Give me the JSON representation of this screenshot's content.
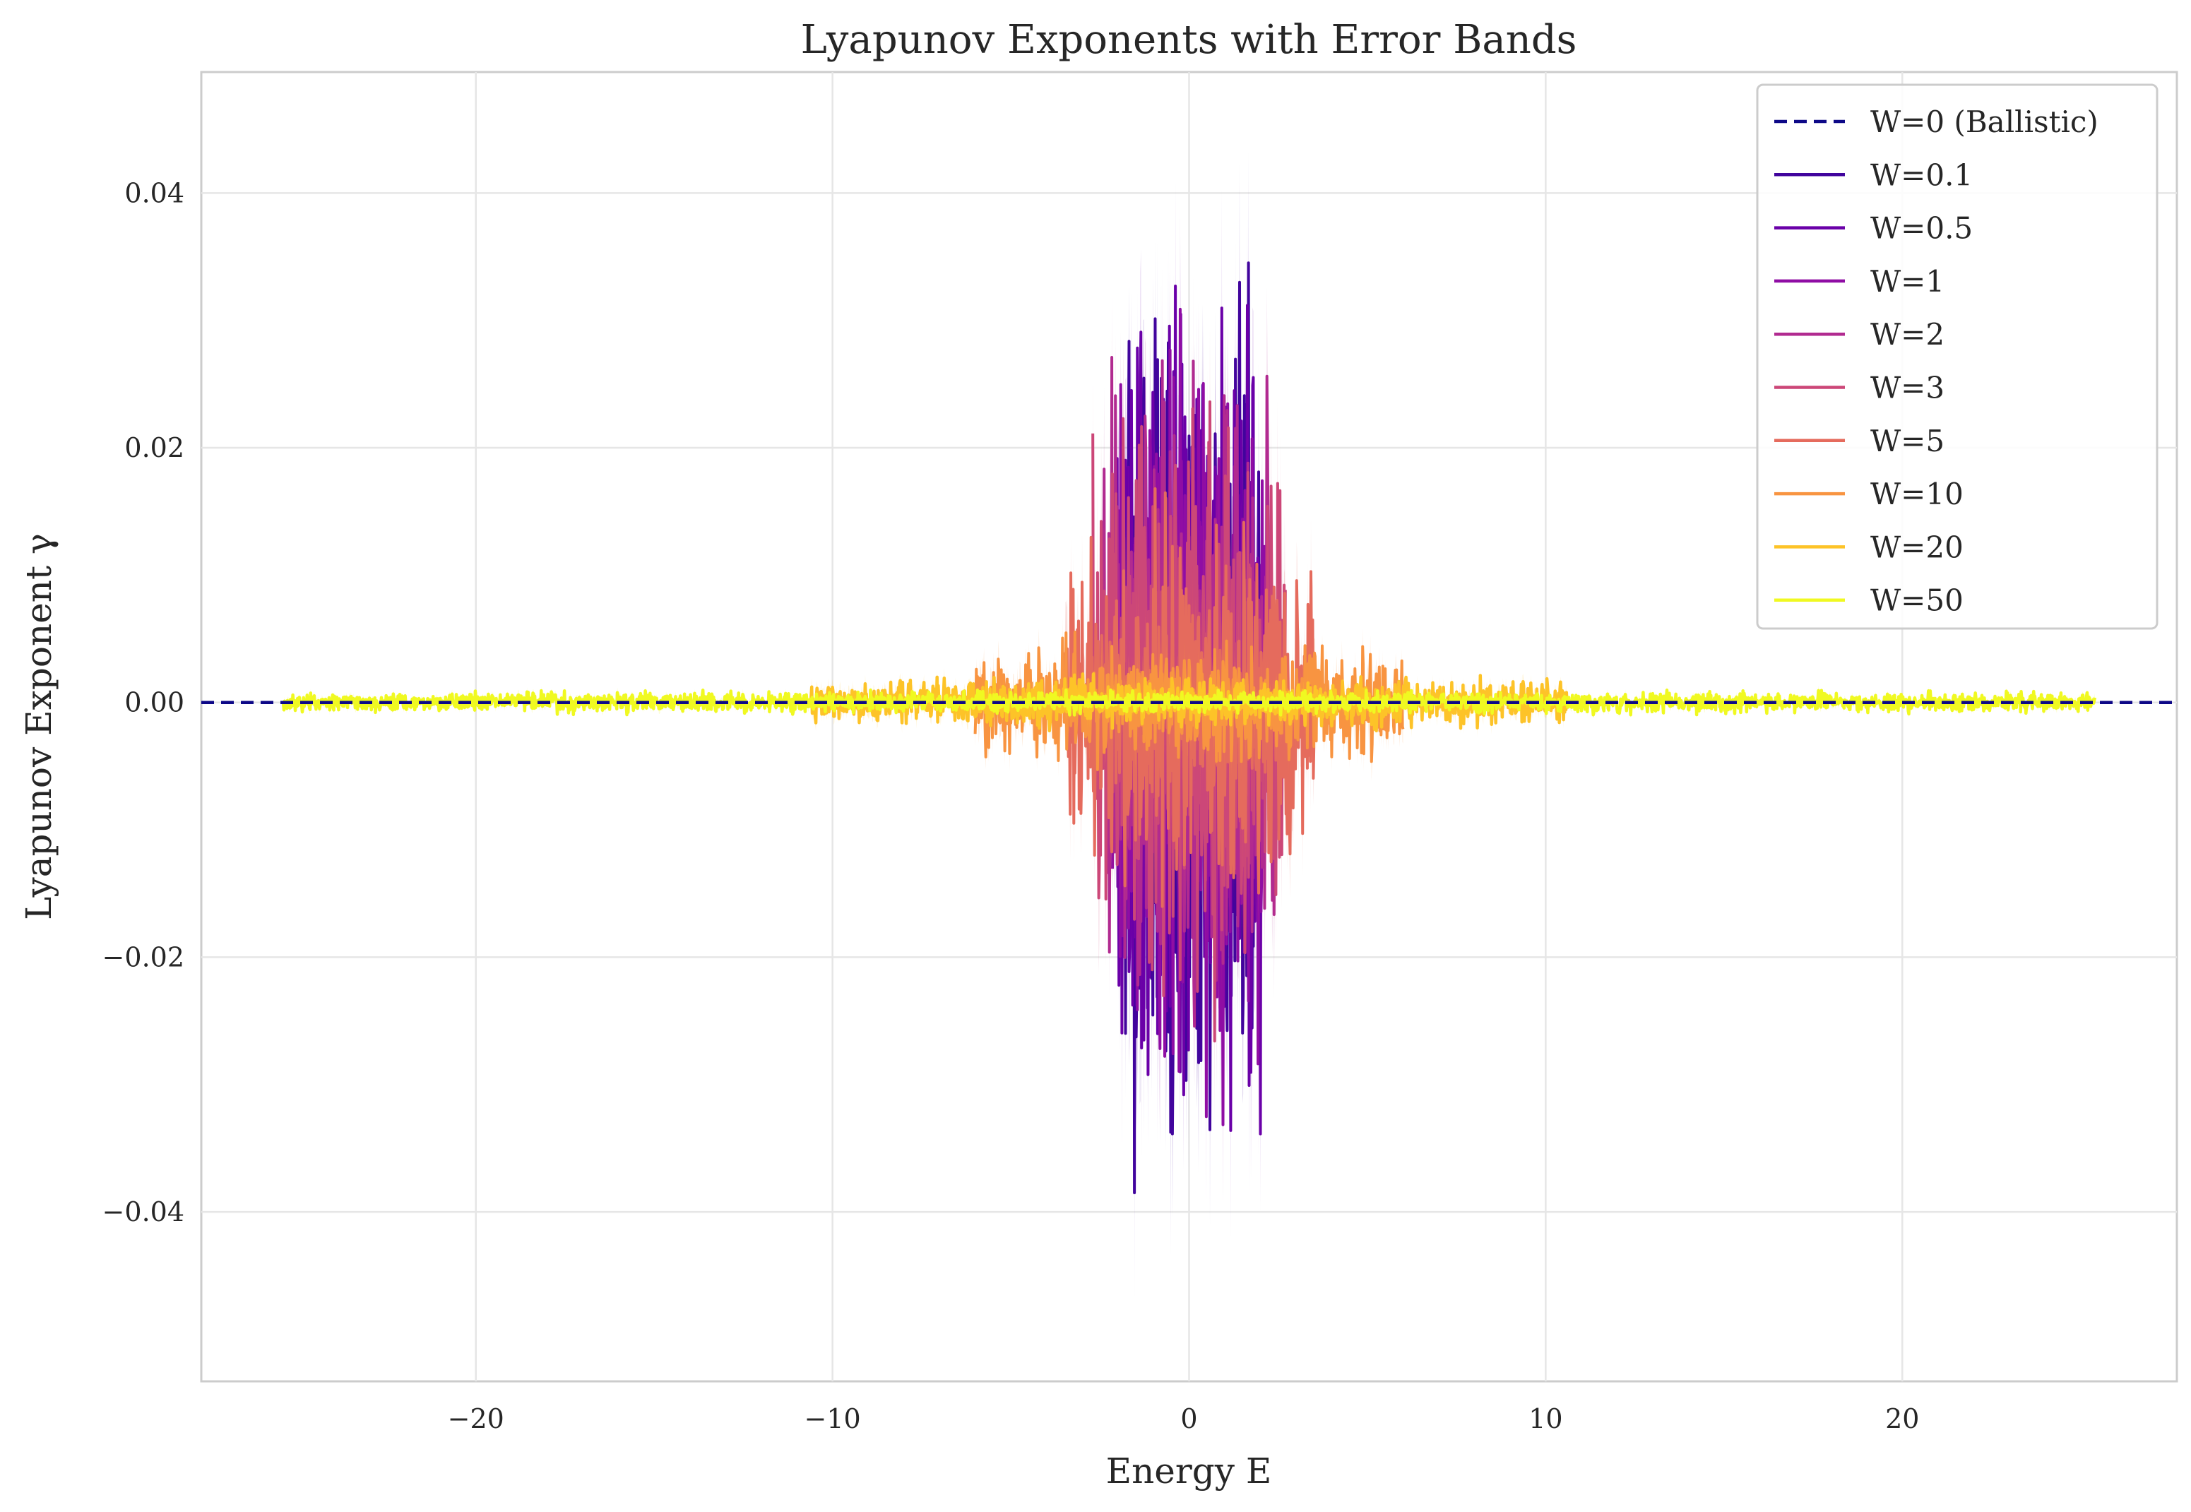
{
  "chart_data": {
    "type": "line",
    "title": "Lyapunov Exponents with Error Bands",
    "xlabel": "Energy E",
    "ylabel": "Lyapunov Exponent γ",
    "xlim": [
      -27.7,
      27.7
    ],
    "ylim": [
      -0.0533,
      0.0495
    ],
    "xticks": [
      -20,
      -10,
      0,
      10,
      20
    ],
    "xtick_labels": [
      "−20",
      "−10",
      "0",
      "10",
      "20"
    ],
    "yticks": [
      -0.04,
      -0.02,
      0.0,
      0.02,
      0.04
    ],
    "ytick_labels": [
      "−0.04",
      "−0.02",
      "0.00",
      "0.02",
      "0.04"
    ],
    "grid": true,
    "legend_position": "top-right",
    "reference_line": {
      "name": "W=0 (Ballistic)",
      "y": 0.0,
      "style": "dashed",
      "color": "#0d0887"
    },
    "series": [
      {
        "name": "W=0.1",
        "W": 0.1,
        "color": "#41049d",
        "x_range": [
          -2.0,
          2.0
        ],
        "amplitude": 0.029,
        "error": 0.007
      },
      {
        "name": "W=0.5",
        "W": 0.5,
        "color": "#6a00a8",
        "x_range": [
          -2.05,
          2.05
        ],
        "amplitude": 0.028,
        "error": 0.007
      },
      {
        "name": "W=1",
        "W": 1,
        "color": "#8f0da4",
        "x_range": [
          -2.15,
          2.15
        ],
        "amplitude": 0.025,
        "error": 0.006
      },
      {
        "name": "W=2",
        "W": 2,
        "color": "#b12a90",
        "x_range": [
          -2.4,
          2.4
        ],
        "amplitude": 0.022,
        "error": 0.006
      },
      {
        "name": "W=3",
        "W": 3,
        "color": "#cc4778",
        "x_range": [
          -2.7,
          2.7
        ],
        "amplitude": 0.019,
        "error": 0.005
      },
      {
        "name": "W=5",
        "W": 5,
        "color": "#e56b5d",
        "x_range": [
          -3.5,
          3.5
        ],
        "amplitude": 0.012,
        "error": 0.003
      },
      {
        "name": "W=10",
        "W": 10,
        "color": "#f89441",
        "x_range": [
          -6.0,
          6.0
        ],
        "amplitude": 0.004,
        "error": 0.0012
      },
      {
        "name": "W=20",
        "W": 20,
        "color": "#fdc328",
        "x_range": [
          -10.6,
          10.6
        ],
        "amplitude": 0.0016,
        "error": 0.0006
      },
      {
        "name": "W=50",
        "W": 50,
        "color": "#f0f921",
        "x_range": [
          -25.4,
          25.4
        ],
        "amplitude": 0.0007,
        "error": 0.0003
      }
    ]
  }
}
